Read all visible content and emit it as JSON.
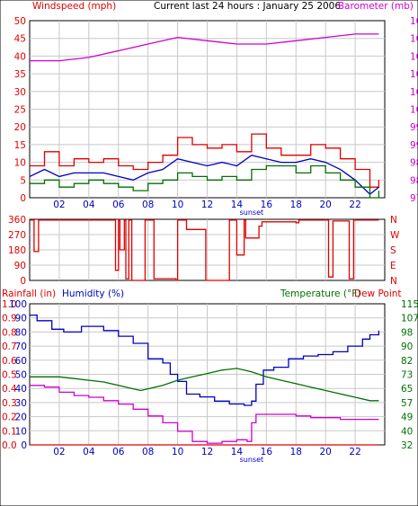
{
  "header": {
    "left": "Windspeed (mph)",
    "center": "Current last 24 hours : January 25 2006",
    "right": "Barometer (mb)"
  },
  "panel3_labels": {
    "rainfall": "Rainfall (in)",
    "humidity": "Humidity (%)",
    "temperature": "Temperature (°F)",
    "dewpoint": "Dew Point"
  },
  "colors": {
    "red": "#e00000",
    "blue": "#0000c0",
    "green": "#007000",
    "magenta": "#d000d0",
    "grid": "#c8c8c8",
    "frame": "#000000"
  },
  "chart_data": [
    {
      "type": "line",
      "title": "Current last 24 hours : January 25 2006",
      "x_ticks": [
        "02",
        "04",
        "06",
        "08",
        "10",
        "12",
        "14",
        "16",
        "18",
        "20",
        "22"
      ],
      "x_annotation": "sunset",
      "x_range": [
        0,
        24
      ],
      "y_left": {
        "label": "Windspeed (mph)",
        "ticks": [
          0,
          5,
          10,
          15,
          20,
          25,
          30,
          35,
          40,
          45,
          50
        ],
        "range": [
          0,
          50
        ]
      },
      "y_right": {
        "label": "Barometer (mb)",
        "ticks": [
          975,
          980,
          986,
          991,
          996,
          1002,
          1007,
          1012,
          1017,
          1023,
          1028
        ],
        "range": [
          975,
          1028
        ]
      },
      "grid": true,
      "series": [
        {
          "color": "#e00000",
          "axis": "left",
          "step": true,
          "x": [
            0,
            1,
            2,
            3,
            4,
            5,
            6,
            7,
            8,
            9,
            10,
            11,
            12,
            13,
            14,
            15,
            16,
            17,
            18,
            19,
            20,
            21,
            22,
            23,
            23.6
          ],
          "y": [
            9,
            13,
            9,
            11,
            10,
            11,
            9,
            8,
            10,
            12,
            17,
            15,
            14,
            15,
            13,
            18,
            14,
            12,
            12,
            15,
            14,
            11,
            8,
            3,
            5
          ]
        },
        {
          "color": "#0000c0",
          "axis": "left",
          "step": false,
          "x": [
            0,
            1,
            2,
            3,
            4,
            5,
            6,
            7,
            8,
            9,
            10,
            11,
            12,
            13,
            14,
            15,
            16,
            17,
            18,
            19,
            20,
            21,
            22,
            23,
            23.6
          ],
          "y": [
            6,
            8,
            6,
            7,
            7,
            7,
            6,
            5,
            7,
            8,
            11,
            10,
            9,
            10,
            9,
            12,
            11,
            10,
            10,
            11,
            10,
            8,
            5,
            1,
            3
          ]
        },
        {
          "color": "#007000",
          "axis": "left",
          "step": true,
          "x": [
            0,
            1,
            2,
            3,
            4,
            5,
            6,
            7,
            8,
            9,
            10,
            11,
            12,
            13,
            14,
            15,
            16,
            17,
            18,
            19,
            20,
            21,
            22,
            23,
            23.6
          ],
          "y": [
            4,
            5,
            3,
            4,
            5,
            4,
            3,
            2,
            4,
            5,
            7,
            6,
            5,
            6,
            5,
            8,
            9,
            9,
            7,
            9,
            7,
            5,
            3,
            0,
            2
          ]
        },
        {
          "color": "#d000d0",
          "axis": "right",
          "step": false,
          "x": [
            0,
            2,
            4,
            6,
            8,
            10,
            12,
            14,
            16,
            18,
            20,
            22,
            23.6
          ],
          "y": [
            1016,
            1016,
            1017,
            1019,
            1021,
            1023,
            1022,
            1021,
            1021,
            1022,
            1023,
            1024,
            1024
          ]
        }
      ]
    },
    {
      "type": "line",
      "x_range": [
        0,
        24
      ],
      "y_left": {
        "ticks": [
          0,
          90,
          180,
          270,
          360
        ],
        "range": [
          0,
          360
        ]
      },
      "y_right": {
        "ticks": [
          "N",
          "E",
          "S",
          "W",
          "N"
        ]
      },
      "grid": true,
      "series": [
        {
          "color": "#e00000",
          "axis": "left",
          "step": true,
          "x": [
            0,
            0.3,
            0.6,
            5.7,
            5.8,
            6.0,
            6.1,
            6.4,
            6.5,
            6.7,
            6.9,
            7.7,
            7.8,
            8.3,
            8.4,
            9.9,
            10.0,
            10.5,
            10.6,
            11.8,
            11.9,
            13.4,
            13.5,
            13.9,
            14.0,
            14.5,
            14.6,
            15.5,
            15.7,
            18.0,
            18.2,
            20.1,
            20.2,
            20.4,
            20.5,
            21.5,
            21.6,
            21.8,
            21.9,
            23.6
          ],
          "y": [
            355,
            170,
            355,
            355,
            60,
            355,
            180,
            355,
            10,
            355,
            0,
            0,
            355,
            355,
            10,
            0,
            355,
            355,
            300,
            300,
            0,
            0,
            355,
            355,
            150,
            355,
            250,
            320,
            345,
            340,
            355,
            355,
            20,
            20,
            350,
            350,
            10,
            10,
            355,
            355
          ]
        }
      ]
    },
    {
      "type": "line",
      "x_range": [
        0,
        24
      ],
      "y_left_rain": {
        "label": "Rainfall (in)",
        "ticks": [
          0.0,
          0.1,
          0.2,
          0.3,
          0.4,
          0.5,
          0.6,
          0.7,
          0.8,
          0.9,
          1.0
        ],
        "range": [
          0,
          1
        ]
      },
      "y_left_humidity": {
        "label": "Humidity (%)",
        "ticks": [
          0,
          10,
          20,
          30,
          40,
          50,
          60,
          70,
          80,
          90,
          100
        ],
        "range": [
          0,
          100
        ]
      },
      "y_right": {
        "label": "Temperature (°F)",
        "ticks": [
          32,
          40,
          49,
          57,
          65,
          73,
          82,
          90,
          98,
          107,
          115
        ],
        "range": [
          32,
          115
        ]
      },
      "x_ticks": [
        "02",
        "04",
        "06",
        "08",
        "10",
        "12",
        "14",
        "16",
        "18",
        "20",
        "22"
      ],
      "x_annotation": "sunset",
      "grid": true,
      "series": [
        {
          "name": "Humidity (%)",
          "color": "#0000c0",
          "axis": "humidity",
          "step": true,
          "x": [
            0,
            0.5,
            1.5,
            2.3,
            3.5,
            4.5,
            5.0,
            6.0,
            7.0,
            8.0,
            9.0,
            9.5,
            10.0,
            10.6,
            11.5,
            12.5,
            13.5,
            14.5,
            15.0,
            15.3,
            15.8,
            16.5,
            17.5,
            18.5,
            19.5,
            20.5,
            21.5,
            22.5,
            23.0,
            23.6
          ],
          "y": [
            92,
            88,
            82,
            80,
            84,
            84,
            81,
            77,
            72,
            61,
            58,
            50,
            45,
            36,
            34,
            31,
            29,
            28,
            31,
            43,
            53,
            55,
            61,
            63,
            64,
            66,
            70,
            75,
            78,
            81
          ]
        },
        {
          "name": "Temperature (°F)",
          "color": "#007000",
          "axis": "right",
          "step": false,
          "x": [
            0,
            1,
            2,
            3,
            4,
            5,
            6,
            7,
            7.5,
            8,
            9,
            10,
            11,
            12,
            13,
            14,
            14.5,
            15,
            16,
            17,
            18,
            19,
            20,
            21,
            22,
            23,
            23.6
          ],
          "y": [
            72,
            72,
            72,
            71,
            70,
            69,
            67,
            65,
            64,
            65,
            67,
            70,
            72,
            74,
            76,
            77,
            76,
            75,
            72,
            70,
            68,
            66,
            64,
            62,
            60,
            58,
            58
          ]
        },
        {
          "name": "Dew Point",
          "color": "#d000d0",
          "axis": "right",
          "step": true,
          "x": [
            0,
            1,
            2,
            3,
            4,
            5,
            6,
            7,
            8,
            9,
            10,
            11,
            12,
            13,
            14,
            14.7,
            15.0,
            15.3,
            16,
            17,
            18,
            19,
            20,
            21,
            22,
            23,
            23.6
          ],
          "y": [
            67,
            66,
            63,
            61,
            60,
            58,
            56,
            53,
            49,
            45,
            40,
            34,
            33,
            34,
            35,
            34,
            45,
            50,
            50,
            50,
            49,
            48,
            48,
            47,
            47,
            47,
            47
          ]
        },
        {
          "name": "Rainfall (in)",
          "color": "#e00000",
          "axis": "rain",
          "step": false,
          "x": [
            0,
            23.6
          ],
          "y": [
            0.0,
            0.0
          ]
        }
      ]
    }
  ]
}
